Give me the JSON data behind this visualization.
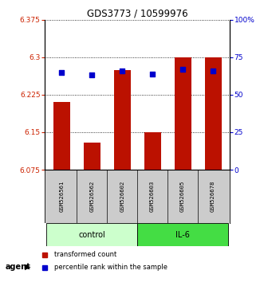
{
  "title": "GDS3773 / 10599976",
  "samples": [
    "GSM526561",
    "GSM526562",
    "GSM526602",
    "GSM526603",
    "GSM526605",
    "GSM526678"
  ],
  "red_values": [
    6.21,
    6.13,
    6.275,
    6.15,
    6.3,
    6.3
  ],
  "blue_values": [
    65.0,
    63.0,
    66.0,
    64.0,
    67.0,
    66.0
  ],
  "ylim_left": [
    6.075,
    6.375
  ],
  "ylim_right": [
    0,
    100
  ],
  "yticks_left": [
    6.075,
    6.15,
    6.225,
    6.3,
    6.375
  ],
  "ytick_labels_left": [
    "6.075",
    "6.15",
    "6.225",
    "6.3",
    "6.375"
  ],
  "yticks_right": [
    0,
    25,
    50,
    75,
    100
  ],
  "ytick_labels_right": [
    "0",
    "25",
    "50",
    "75",
    "100%"
  ],
  "bar_color": "#bb1100",
  "marker_color": "#0000cc",
  "bar_bottom": 6.075,
  "groups": [
    {
      "label": "control",
      "indices": [
        0,
        1,
        2
      ],
      "color": "#ccffcc"
    },
    {
      "label": "IL-6",
      "indices": [
        3,
        4,
        5
      ],
      "color": "#44dd44"
    }
  ],
  "agent_label": "agent",
  "legend_items": [
    {
      "color": "#bb1100",
      "label": "transformed count"
    },
    {
      "color": "#0000cc",
      "label": "percentile rank within the sample"
    }
  ],
  "grid_color": "#000000",
  "label_bg": "#cccccc"
}
